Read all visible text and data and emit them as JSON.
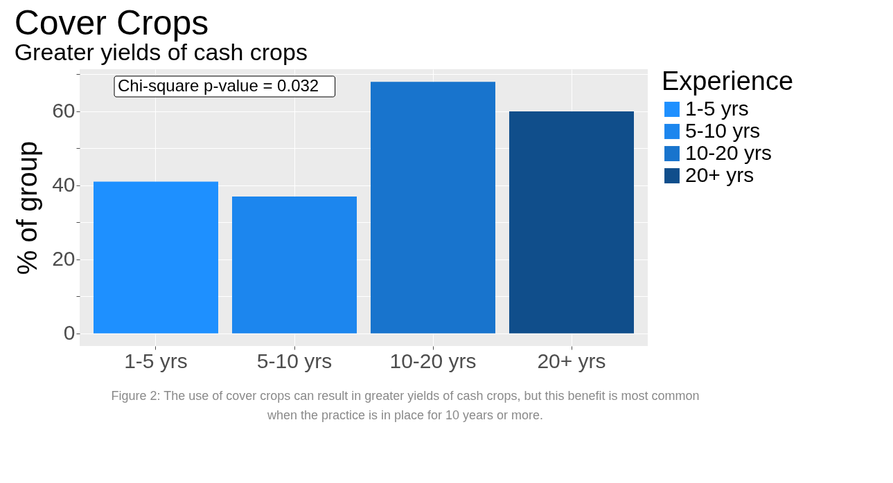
{
  "chart_data": {
    "type": "bar",
    "title": "Cover Crops",
    "subtitle": "Greater yields of cash crops",
    "ylabel": "% of group",
    "legend_title": "Experience",
    "categories": [
      "1-5 yrs",
      "5-10 yrs",
      "10-20 yrs",
      "20+ yrs"
    ],
    "stacked": true,
    "series": [
      {
        "name": "1-5 yrs",
        "color": "#1e90ff",
        "values": [
          41,
          null,
          null,
          null
        ]
      },
      {
        "name": "5-10 yrs",
        "color": "#1c86ee",
        "values": [
          null,
          37,
          null,
          null
        ]
      },
      {
        "name": "10-20 yrs",
        "color": "#1874cd",
        "values": [
          null,
          null,
          68,
          null
        ]
      },
      {
        "name": "20+ yrs",
        "color": "#104e8b",
        "values": [
          null,
          null,
          null,
          60
        ]
      }
    ],
    "ylim": [
      -3.4,
      71.4
    ],
    "yticks": [
      0,
      {
        "value": 10,
        "label": null
      },
      20,
      {
        "value": 30,
        "label": null
      },
      40,
      {
        "value": 50,
        "label": null
      },
      60,
      {
        "value": 70,
        "label": null
      }
    ],
    "grid": true,
    "legend": "right",
    "annotations": [
      "Chi-square p-value =  0.032",
      "Figure 2: The use of cover crops can result in greater yields of cash crops, but this benefit is most common when the practice is in place for 10 years or more."
    ]
  }
}
